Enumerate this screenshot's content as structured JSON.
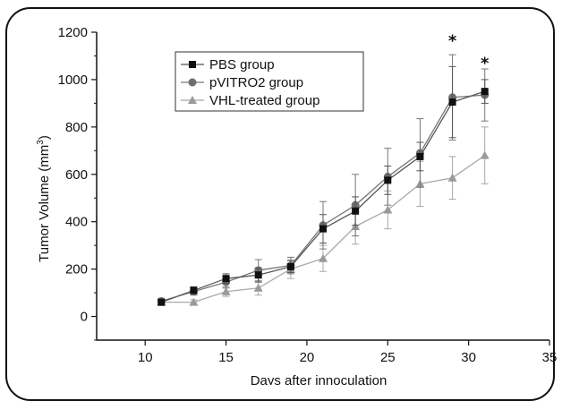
{
  "chart_data": {
    "type": "line",
    "title": "",
    "xlabel": "Days after innoculation",
    "ylabel": "Tumor Volume (mm",
    "ylabel_sup": "3",
    "ylabel_end": ")",
    "xlim": [
      7,
      35
    ],
    "ylim": [
      -100,
      1200
    ],
    "xticks": [
      10,
      15,
      20,
      25,
      30,
      35
    ],
    "yticks": [
      0,
      200,
      400,
      600,
      800,
      1000,
      1200
    ],
    "legend_position": "top-left",
    "annotations": [
      {
        "x": 29,
        "y": 1165,
        "text": "*"
      },
      {
        "x": 31,
        "y": 1070,
        "text": "*"
      }
    ],
    "series": [
      {
        "name": "PBS group",
        "marker": "square",
        "color": "#111111",
        "line_color": "#555555",
        "x": [
          11,
          13,
          15,
          17,
          19,
          21,
          23,
          25,
          27,
          29,
          31
        ],
        "y": [
          60,
          110,
          160,
          175,
          210,
          370,
          445,
          575,
          675,
          905,
          950
        ],
        "err": [
          10,
          15,
          20,
          30,
          25,
          60,
          60,
          60,
          60,
          150,
          50
        ]
      },
      {
        "name": "pVITRO2 group",
        "marker": "circle",
        "color": "#6e6e6e",
        "line_color": "#777777",
        "x": [
          11,
          13,
          15,
          17,
          19,
          21,
          23,
          25,
          27,
          29,
          31
        ],
        "y": [
          65,
          105,
          145,
          195,
          215,
          385,
          470,
          590,
          690,
          925,
          935
        ],
        "err": [
          10,
          15,
          25,
          45,
          35,
          100,
          130,
          120,
          145,
          180,
          110
        ]
      },
      {
        "name": "VHL-treated group",
        "marker": "triangle",
        "color": "#9a9a9a",
        "line_color": "#a8a8a8",
        "x": [
          11,
          13,
          15,
          17,
          19,
          21,
          23,
          25,
          27,
          29,
          31
        ],
        "y": [
          60,
          60,
          105,
          120,
          200,
          245,
          380,
          450,
          560,
          585,
          680
        ],
        "err": [
          10,
          10,
          20,
          30,
          40,
          55,
          75,
          80,
          95,
          90,
          120
        ]
      }
    ]
  }
}
